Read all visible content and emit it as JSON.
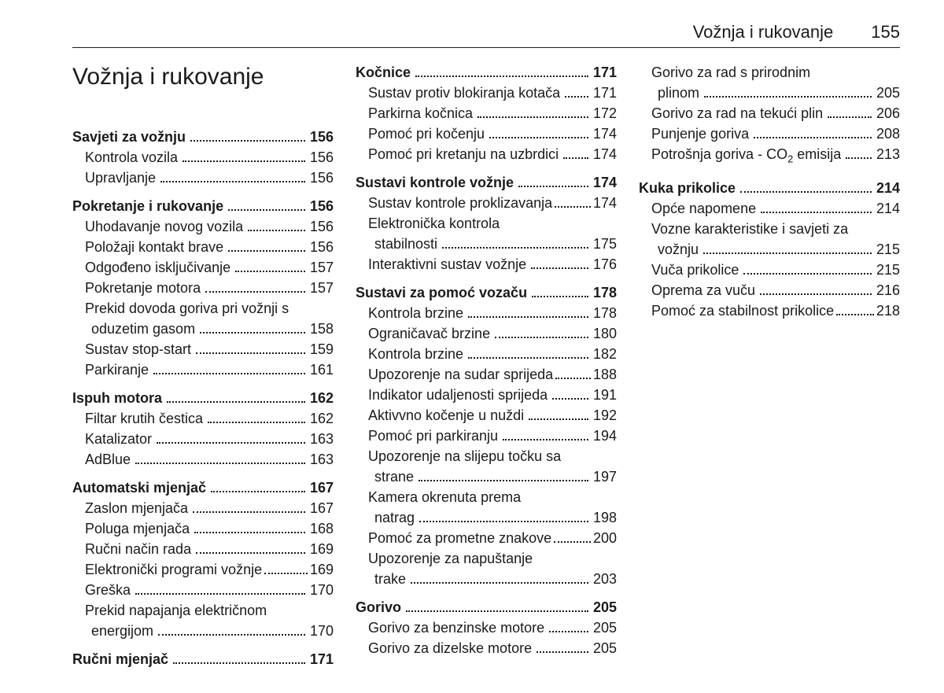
{
  "header": {
    "section": "Vožnja i rukovanje",
    "page": "155"
  },
  "chapter_title": "Vožnja i rukovanje",
  "columns": [
    {
      "groups": [
        {
          "heading": {
            "label": "Savjeti za vožnju",
            "page": "156"
          },
          "items": [
            {
              "label": "Kontrola vozila",
              "page": "156"
            },
            {
              "label": "Upravljanje",
              "page": "156"
            }
          ]
        },
        {
          "heading": {
            "label": "Pokretanje i rukovanje",
            "page": "156"
          },
          "items": [
            {
              "label": "Uhodavanje novog vozila",
              "page": "156"
            },
            {
              "label": "Položaji kontakt brave",
              "page": "156"
            },
            {
              "label": "Odgođeno isključivanje",
              "page": "157"
            },
            {
              "label": "Pokretanje motora",
              "page": "157"
            },
            {
              "label": "Prekid dovoda goriva pri vožnji s",
              "cont": "oduzetim gasom",
              "page": "158"
            },
            {
              "label": "Sustav stop-start",
              "page": "159"
            },
            {
              "label": "Parkiranje",
              "page": "161"
            }
          ]
        },
        {
          "heading": {
            "label": "Ispuh motora",
            "page": "162"
          },
          "items": [
            {
              "label": "Filtar krutih čestica",
              "page": "162"
            },
            {
              "label": "Katalizator",
              "page": "163"
            },
            {
              "label": "AdBlue",
              "page": "163"
            }
          ]
        },
        {
          "heading": {
            "label": "Automatski mjenjač",
            "page": "167"
          },
          "items": [
            {
              "label": "Zaslon mjenjača",
              "page": "167"
            },
            {
              "label": "Poluga mjenjača",
              "page": "168"
            },
            {
              "label": "Ručni način rada",
              "page": "169"
            },
            {
              "label": "Elektronički programi vožnje",
              "page": "169",
              "tight": true
            },
            {
              "label": "Greška",
              "page": "170"
            },
            {
              "label": "Prekid napajanja električnom",
              "cont": "energijom",
              "page": "170"
            }
          ]
        },
        {
          "heading": {
            "label": "Ručni mjenjač",
            "page": "171"
          },
          "items": []
        }
      ]
    },
    {
      "groups": [
        {
          "heading": {
            "label": "Kočnice",
            "page": "171"
          },
          "items": [
            {
              "label": "Sustav protiv blokiranja kotača",
              "page": "171"
            },
            {
              "label": "Parkirna kočnica",
              "page": "172"
            },
            {
              "label": "Pomoć pri kočenju",
              "page": "174"
            },
            {
              "label": "Pomoć pri kretanju na uzbrdici",
              "page": "174"
            }
          ]
        },
        {
          "heading": {
            "label": "Sustavi kontrole vožnje",
            "page": "174"
          },
          "items": [
            {
              "label": "Sustav kontrole proklizavanja",
              "page": "174",
              "tight": true
            },
            {
              "label": "Elektronička kontrola",
              "cont": "stabilnosti",
              "page": "175"
            },
            {
              "label": "Interaktivni sustav vožnje",
              "page": "176"
            }
          ]
        },
        {
          "heading": {
            "label": "Sustavi za pomoć vozaču",
            "page": "178"
          },
          "items": [
            {
              "label": "Kontrola brzine",
              "page": "178"
            },
            {
              "label": "Ograničavač brzine",
              "page": "180"
            },
            {
              "label": "Kontrola brzine",
              "page": "182"
            },
            {
              "label": "Upozorenje na sudar sprijeda",
              "page": "188",
              "tight": true
            },
            {
              "label": "Indikator udaljenosti sprijeda",
              "page": "191"
            },
            {
              "label": "Aktivvno kočenje u nuždi",
              "page": "192"
            },
            {
              "label": "Pomoć pri parkiranju",
              "page": "194"
            },
            {
              "label": "Upozorenje na slijepu točku sa",
              "cont": "strane",
              "page": "197"
            },
            {
              "label": "Kamera okrenuta prema",
              "cont": "natrag",
              "page": "198"
            },
            {
              "label": "Pomoć za prometne znakove",
              "page": "200",
              "tight": true
            },
            {
              "label": "Upozorenje za napuštanje",
              "cont": "trake",
              "page": "203"
            }
          ]
        },
        {
          "heading": {
            "label": "Gorivo",
            "page": "205"
          },
          "items": [
            {
              "label": "Gorivo za benzinske motore",
              "page": "205"
            },
            {
              "label": "Gorivo za dizelske motore",
              "page": "205"
            }
          ]
        }
      ]
    },
    {
      "groups": [
        {
          "items": [
            {
              "label": "Gorivo za rad s prirodnim",
              "cont": "plinom",
              "page": "205"
            },
            {
              "label": "Gorivo za rad na tekući plin",
              "page": "206"
            },
            {
              "label": "Punjenje goriva",
              "page": "208"
            },
            {
              "label": "Potrošnja goriva - CO₂ emisija",
              "page": "213",
              "html": true
            }
          ]
        },
        {
          "heading": {
            "label": "Kuka prikolice",
            "page": "214"
          },
          "items": [
            {
              "label": "Opće napomene",
              "page": "214"
            },
            {
              "label": "Vozne karakteristike i savjeti za",
              "cont": "vožnju",
              "page": "215"
            },
            {
              "label": "Vuča prikolice",
              "page": "215"
            },
            {
              "label": "Oprema za vuču",
              "page": "216"
            },
            {
              "label": "Pomoć za stabilnost prikolice",
              "page": "218",
              "tight": true
            }
          ]
        }
      ]
    }
  ]
}
